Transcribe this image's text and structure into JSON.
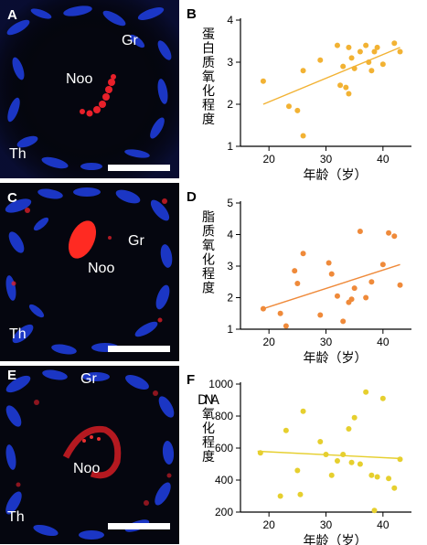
{
  "micrographs": [
    {
      "letter": "A",
      "region_labels": [
        "Gr",
        "Noo",
        "Th"
      ]
    },
    {
      "letter": "C",
      "region_labels": [
        "Gr",
        "Noo",
        "Th"
      ]
    },
    {
      "letter": "E",
      "region_labels": [
        "Gr",
        "Noo",
        "Th"
      ]
    }
  ],
  "colors": {
    "panel_b": "#f2b233",
    "panel_d": "#ef8a3a",
    "panel_f": "#e6cf2e",
    "nuclei": "#1e3cd8",
    "stain": "#e8202a"
  },
  "chart_data": [
    {
      "letter": "B",
      "type": "scatter",
      "ylabel": "蛋白质氧化程度",
      "xlabel": "年龄（岁）",
      "xlim": [
        15,
        45
      ],
      "ylim": [
        1,
        4
      ],
      "xticks": [
        20,
        30,
        40
      ],
      "yticks": [
        1,
        2,
        3,
        4
      ],
      "x": [
        19,
        23.5,
        25,
        26,
        26,
        29,
        32,
        32.5,
        33,
        33.5,
        34,
        34,
        34.5,
        35,
        36,
        37,
        37.5,
        38,
        38.5,
        39,
        40,
        42,
        43
      ],
      "y": [
        2.55,
        1.95,
        1.85,
        1.25,
        2.8,
        3.05,
        3.4,
        2.45,
        2.9,
        2.4,
        2.25,
        3.35,
        3.1,
        2.85,
        3.25,
        3.4,
        3.0,
        2.8,
        3.25,
        3.35,
        2.95,
        3.45,
        3.25
      ],
      "trend": [
        [
          19,
          2.0
        ],
        [
          43,
          3.35
        ]
      ]
    },
    {
      "letter": "D",
      "type": "scatter",
      "ylabel": "脂质氧化程度",
      "xlabel": "年龄（岁）",
      "xlim": [
        15,
        45
      ],
      "ylim": [
        1,
        5
      ],
      "xticks": [
        20,
        30,
        40
      ],
      "yticks": [
        1,
        2,
        3,
        4,
        5
      ],
      "x": [
        19,
        22,
        23,
        24.5,
        25,
        26,
        29,
        30.5,
        31,
        32,
        33,
        34,
        34.5,
        35,
        36,
        37,
        38,
        40,
        41,
        42,
        43
      ],
      "y": [
        1.65,
        1.5,
        1.1,
        2.85,
        2.45,
        3.4,
        1.45,
        3.1,
        2.75,
        2.05,
        1.25,
        1.85,
        1.95,
        2.3,
        4.1,
        2.0,
        2.5,
        3.05,
        4.05,
        3.95,
        2.4
      ],
      "trend": [
        [
          19,
          1.65
        ],
        [
          43,
          3.05
        ]
      ]
    },
    {
      "letter": "F",
      "type": "scatter",
      "ylabel": "DNA氧化程度",
      "xlabel": "年龄（岁）",
      "xlim": [
        15,
        45
      ],
      "ylim": [
        200,
        1000
      ],
      "xticks": [
        20,
        30,
        40
      ],
      "yticks": [
        200,
        400,
        600,
        800,
        1000
      ],
      "x": [
        18.5,
        22,
        23,
        25,
        25.5,
        26,
        29,
        30,
        31,
        32,
        33,
        34,
        34.5,
        35,
        36,
        37,
        38,
        38.5,
        39,
        40,
        41,
        42,
        43
      ],
      "y": [
        570,
        300,
        710,
        460,
        310,
        830,
        640,
        560,
        430,
        520,
        560,
        720,
        510,
        790,
        500,
        950,
        430,
        210,
        420,
        910,
        410,
        350,
        530
      ],
      "trend": [
        [
          18,
          580
        ],
        [
          43,
          535
        ]
      ]
    }
  ]
}
